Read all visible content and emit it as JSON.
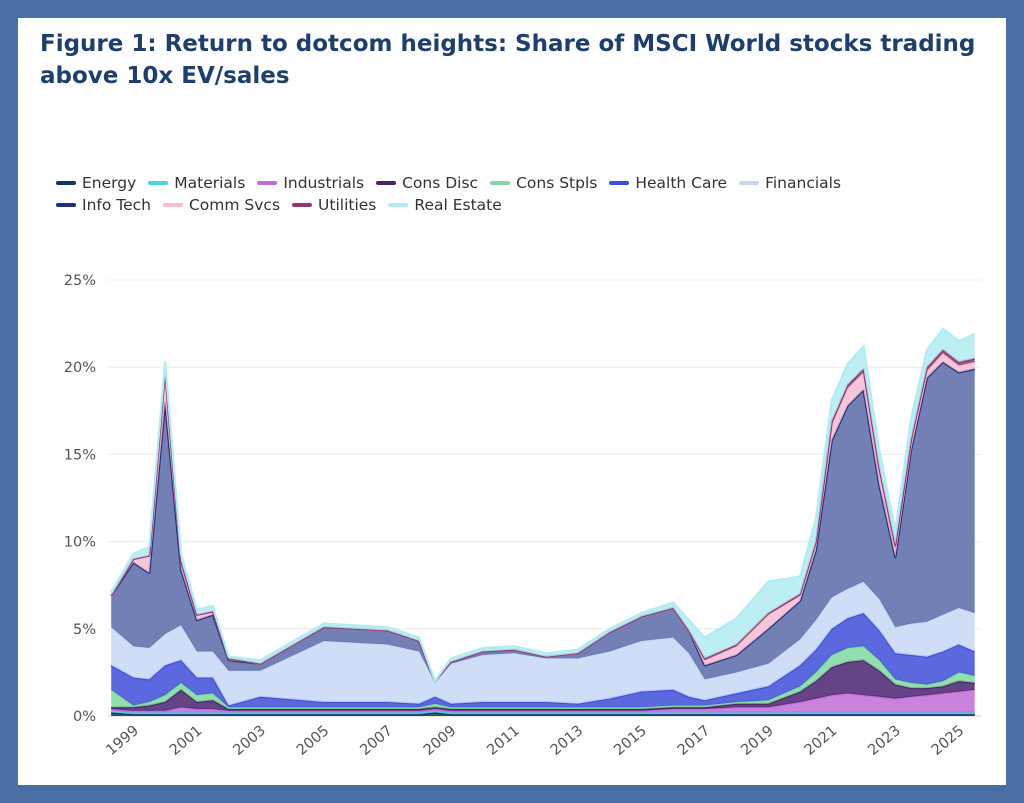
{
  "title": "Figure 1: Return to dotcom heights: Share of MSCI World stocks trading above 10x EV/sales",
  "chart_data": {
    "type": "area",
    "stacked": true,
    "title": "Figure 1: Return to dotcom heights: Share of MSCI World stocks trading above 10x EV/sales",
    "xlabel": "",
    "ylabel": "",
    "xlim": [
      1998.2,
      2025.7
    ],
    "ylim": [
      0,
      25
    ],
    "y_ticks": [
      "0%",
      "5%",
      "10%",
      "15%",
      "20%",
      "25%"
    ],
    "x_ticks": [
      "1999",
      "2001",
      "2003",
      "2005",
      "2007",
      "2009",
      "2011",
      "2013",
      "2015",
      "2017",
      "2019",
      "2021",
      "2023",
      "2025"
    ],
    "grid": true,
    "legend_position": "top-left",
    "x": [
      1998.3,
      1999.0,
      1999.5,
      2000.0,
      2000.5,
      2001.0,
      2001.5,
      2002.0,
      2003.0,
      2005.0,
      2007.0,
      2008.0,
      2008.5,
      2009.0,
      2010.0,
      2011.0,
      2012.0,
      2013.0,
      2014.0,
      2015.0,
      2016.0,
      2016.5,
      2017.0,
      2018.0,
      2019.0,
      2020.0,
      2020.5,
      2021.0,
      2021.5,
      2022.0,
      2022.5,
      2023.0,
      2023.5,
      2024.0,
      2024.5,
      2025.0,
      2025.5
    ],
    "series": [
      {
        "name": "Energy",
        "color": "#12345e",
        "values": [
          0.2,
          0.1,
          0.1,
          0.1,
          0.1,
          0.1,
          0.1,
          0.1,
          0.1,
          0.1,
          0.1,
          0.1,
          0.2,
          0.1,
          0.1,
          0.1,
          0.1,
          0.1,
          0.1,
          0.1,
          0.1,
          0.1,
          0.1,
          0.1,
          0.1,
          0.1,
          0.1,
          0.1,
          0.1,
          0.1,
          0.1,
          0.1,
          0.1,
          0.1,
          0.1,
          0.1,
          0.1
        ]
      },
      {
        "name": "Materials",
        "color": "#4dd0e1",
        "values": [
          0.1,
          0.1,
          0.1,
          0.1,
          0.1,
          0.1,
          0.1,
          0.1,
          0.1,
          0.1,
          0.1,
          0.1,
          0.1,
          0.1,
          0.1,
          0.1,
          0.1,
          0.1,
          0.1,
          0.1,
          0.1,
          0.1,
          0.1,
          0.1,
          0.1,
          0.1,
          0.1,
          0.1,
          0.1,
          0.1,
          0.1,
          0.1,
          0.1,
          0.1,
          0.1,
          0.1,
          0.1
        ]
      },
      {
        "name": "Industrials",
        "color": "#c06dd6",
        "values": [
          0.1,
          0.1,
          0.1,
          0.1,
          0.3,
          0.2,
          0.2,
          0.1,
          0.1,
          0.1,
          0.1,
          0.1,
          0.1,
          0.1,
          0.1,
          0.1,
          0.1,
          0.1,
          0.1,
          0.1,
          0.2,
          0.2,
          0.2,
          0.3,
          0.3,
          0.6,
          0.8,
          1.0,
          1.1,
          1.0,
          0.9,
          0.8,
          0.9,
          1.0,
          1.1,
          1.2,
          1.3
        ]
      },
      {
        "name": "Cons Disc",
        "color": "#4a2370",
        "values": [
          0.1,
          0.2,
          0.3,
          0.5,
          1.0,
          0.4,
          0.5,
          0.1,
          0.1,
          0.1,
          0.1,
          0.1,
          0.1,
          0.1,
          0.1,
          0.1,
          0.1,
          0.1,
          0.1,
          0.1,
          0.1,
          0.1,
          0.1,
          0.2,
          0.2,
          0.6,
          1.0,
          1.6,
          1.8,
          2.0,
          1.5,
          0.8,
          0.5,
          0.4,
          0.4,
          0.6,
          0.4
        ]
      },
      {
        "name": "Cons Stpls",
        "color": "#7fd8a0",
        "values": [
          1.0,
          0.1,
          0.2,
          0.4,
          0.4,
          0.4,
          0.4,
          0.1,
          0.1,
          0.1,
          0.1,
          0.1,
          0.2,
          0.1,
          0.1,
          0.1,
          0.1,
          0.1,
          0.1,
          0.1,
          0.1,
          0.1,
          0.1,
          0.1,
          0.2,
          0.3,
          0.5,
          0.7,
          0.8,
          0.8,
          0.6,
          0.3,
          0.3,
          0.2,
          0.3,
          0.5,
          0.4
        ]
      },
      {
        "name": "Health Care",
        "color": "#3f4fd8",
        "values": [
          1.4,
          1.6,
          1.3,
          1.7,
          1.3,
          1.0,
          0.9,
          0.1,
          0.6,
          0.3,
          0.3,
          0.2,
          0.4,
          0.2,
          0.3,
          0.3,
          0.3,
          0.2,
          0.5,
          0.9,
          0.9,
          0.5,
          0.3,
          0.5,
          0.8,
          1.2,
          1.3,
          1.5,
          1.7,
          1.9,
          1.7,
          1.5,
          1.6,
          1.6,
          1.7,
          1.6,
          1.4
        ]
      },
      {
        "name": "Financials",
        "color": "#c7d8f5",
        "values": [
          2.2,
          1.8,
          1.8,
          1.8,
          2.0,
          1.5,
          1.5,
          2.0,
          1.5,
          3.5,
          3.3,
          3.0,
          0.8,
          2.3,
          2.7,
          2.8,
          2.5,
          2.6,
          2.7,
          2.9,
          3.0,
          2.5,
          1.2,
          1.2,
          1.3,
          1.5,
          1.7,
          1.8,
          1.7,
          1.8,
          1.8,
          1.5,
          1.8,
          2.0,
          2.1,
          2.1,
          2.2
        ]
      },
      {
        "name": "Info Tech",
        "color": "#1f2f7a",
        "fill": "#5b6aa8",
        "values": [
          1.8,
          4.8,
          4.3,
          13.3,
          3.2,
          1.8,
          2.1,
          0.6,
          0.4,
          0.8,
          0.8,
          0.6,
          0.1,
          0.1,
          0.2,
          0.2,
          0.1,
          0.3,
          1.1,
          1.4,
          1.7,
          1.3,
          0.8,
          1.0,
          2.0,
          2.2,
          4.0,
          9.0,
          10.5,
          11.0,
          6.5,
          4.0,
          10.0,
          14.0,
          14.5,
          13.5,
          14.0
        ]
      },
      {
        "name": "Comm Svcs",
        "color": "#f5bcd3",
        "values": [
          0.0,
          0.2,
          1.0,
          1.8,
          0.5,
          0.3,
          0.2,
          0.1,
          0.0,
          0.0,
          0.0,
          0.0,
          0.0,
          0.0,
          0.0,
          0.0,
          0.0,
          0.0,
          0.0,
          0.0,
          0.0,
          0.0,
          0.3,
          0.5,
          0.8,
          0.3,
          0.4,
          0.9,
          1.0,
          1.0,
          0.8,
          0.5,
          0.4,
          0.4,
          0.5,
          0.4,
          0.4
        ]
      },
      {
        "name": "Utilities",
        "color": "#8e3a6e",
        "values": [
          0.0,
          0.0,
          0.0,
          0.0,
          0.0,
          0.0,
          0.0,
          0.0,
          0.0,
          0.0,
          0.0,
          0.0,
          0.0,
          0.0,
          0.0,
          0.0,
          0.0,
          0.0,
          0.0,
          0.0,
          0.0,
          0.0,
          0.1,
          0.1,
          0.1,
          0.1,
          0.1,
          0.2,
          0.2,
          0.2,
          0.2,
          0.2,
          0.2,
          0.2,
          0.2,
          0.2,
          0.2
        ]
      },
      {
        "name": "Real Estate",
        "color": "#b2ebf2",
        "values": [
          0.2,
          0.3,
          0.5,
          0.5,
          0.4,
          0.3,
          0.3,
          0.1,
          0.2,
          0.2,
          0.2,
          0.2,
          0.0,
          0.2,
          0.2,
          0.2,
          0.2,
          0.2,
          0.2,
          0.2,
          0.3,
          0.6,
          1.2,
          1.5,
          1.8,
          1.0,
          1.3,
          1.2,
          1.2,
          1.3,
          1.0,
          0.8,
          1.2,
          1.0,
          1.2,
          1.2,
          1.4
        ]
      }
    ]
  }
}
